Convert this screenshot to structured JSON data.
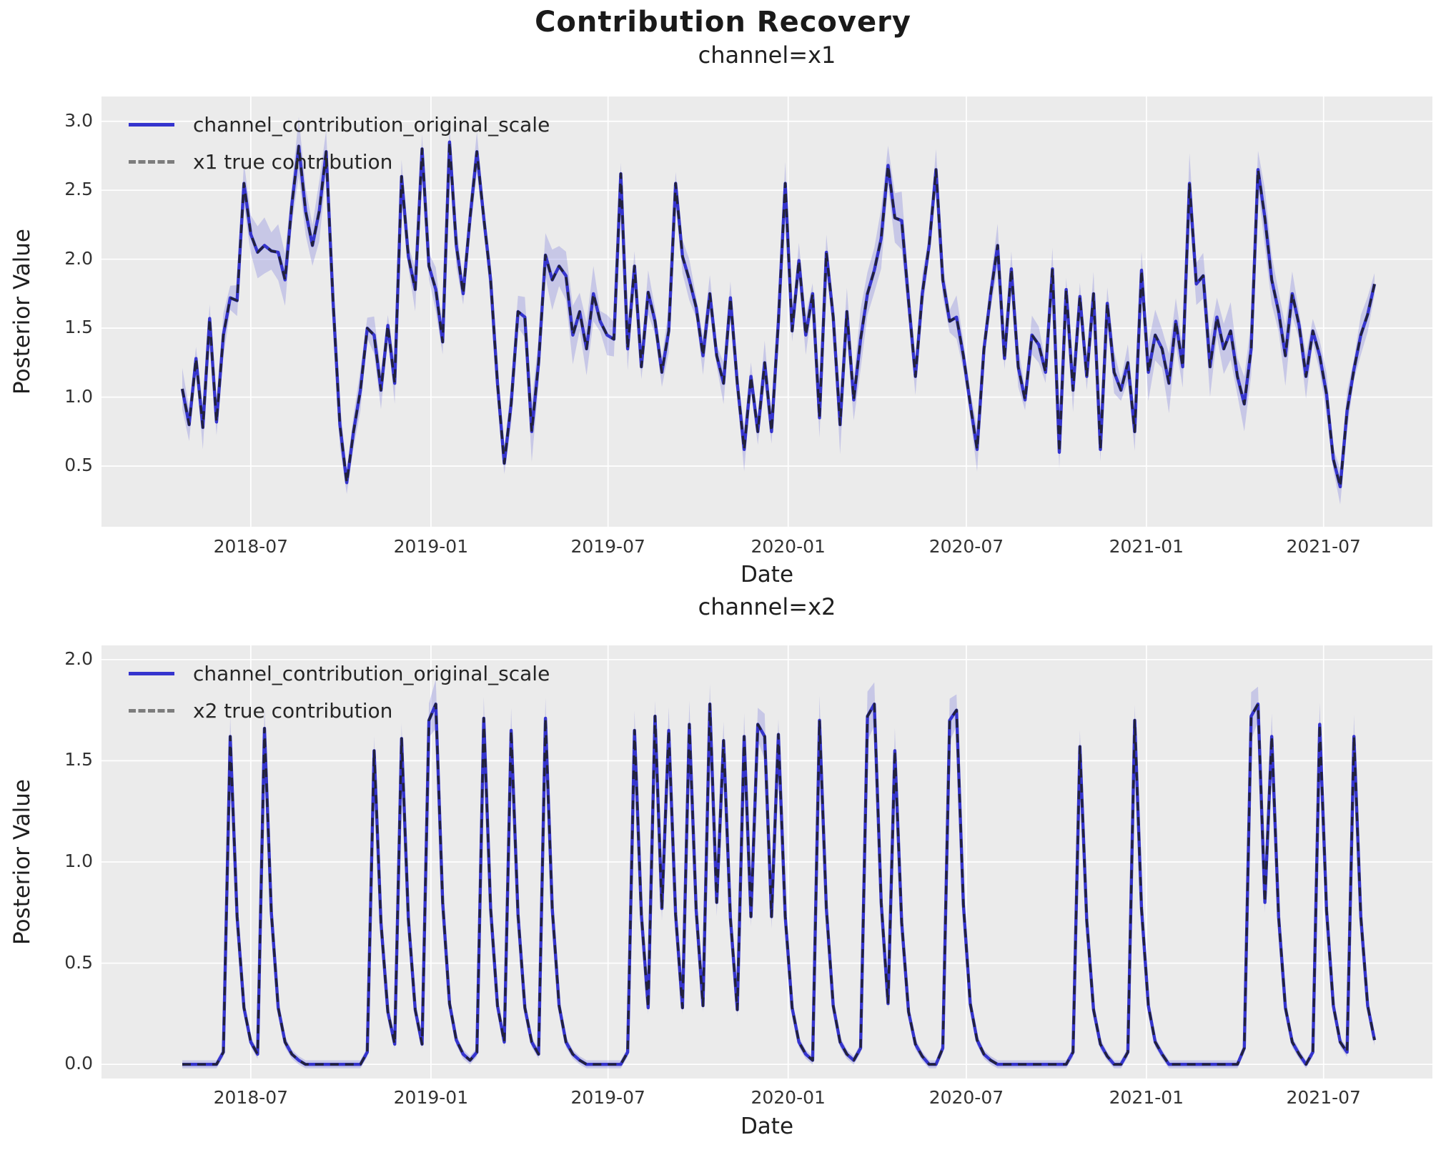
{
  "figure": {
    "title": "Contribution Recovery",
    "background": "#ffffff",
    "panel_background": "#ebebeb",
    "grid_color": "#ffffff",
    "posterior_line_color": "#3534ce",
    "true_line_color": "#7d7d7d",
    "band_color": "rgba(85,85,214,0.24)",
    "xlabel": "Date",
    "ylabel": "Posterior Value",
    "subplot1": {
      "title": "channel=x1",
      "legend": [
        "channel_contribution_original_scale",
        "x1 true contribution"
      ],
      "xlabel": "Date",
      "ylabel": "Posterior Value"
    },
    "subplot2": {
      "title": "channel=x2",
      "legend": [
        "channel_contribution_original_scale",
        "x2 true contribution"
      ],
      "xlabel": "Date",
      "ylabel": "Posterior Value"
    }
  },
  "chart_data": [
    {
      "type": "line",
      "title": "channel=x1",
      "xlabel": "Date",
      "ylabel": "Posterior Value",
      "x_start": "2018-04-22",
      "x_freq_days": 7,
      "n_points": 175,
      "ylim": [
        0.06,
        3.18
      ],
      "yticks": [
        3.0,
        2.5,
        2.0,
        1.5,
        1.0,
        0.5
      ],
      "ytick_labels": [
        "3.0",
        "2.5",
        "2.0",
        "1.5",
        "1.0",
        "0.5"
      ],
      "xticks": [
        {
          "label": "2018-07",
          "week": 10.0
        },
        {
          "label": "2019-01",
          "week": 36.29
        },
        {
          "label": "2019-07",
          "week": 62.14
        },
        {
          "label": "2020-01",
          "week": 88.43
        },
        {
          "label": "2020-07",
          "week": 114.43
        },
        {
          "label": "2021-01",
          "week": 140.71
        },
        {
          "label": "2021-07",
          "week": 166.57
        }
      ],
      "grid": true,
      "legend_position": "upper left",
      "band_halfwidth_typical": 0.13,
      "series": [
        {
          "name": "channel_contribution_original_scale",
          "style": "solid",
          "color": "#3534ce",
          "values": [
            1.06,
            0.8,
            1.28,
            0.78,
            1.57,
            0.82,
            1.45,
            1.72,
            1.7,
            2.55,
            2.18,
            2.05,
            2.1,
            2.06,
            2.05,
            1.85,
            2.4,
            2.82,
            2.35,
            2.1,
            2.35,
            2.78,
            1.7,
            0.8,
            0.38,
            0.75,
            1.05,
            1.5,
            1.45,
            1.05,
            1.52,
            1.1,
            2.6,
            2.02,
            1.78,
            2.8,
            1.95,
            1.78,
            1.4,
            2.85,
            2.1,
            1.75,
            2.3,
            2.78,
            2.3,
            1.85,
            1.1,
            0.52,
            0.95,
            1.62,
            1.58,
            0.75,
            1.25,
            2.03,
            1.85,
            1.95,
            1.88,
            1.45,
            1.62,
            1.35,
            1.75,
            1.55,
            1.45,
            1.42,
            2.62,
            1.35,
            1.95,
            1.22,
            1.76,
            1.55,
            1.18,
            1.48,
            2.55,
            2.02,
            1.85,
            1.65,
            1.3,
            1.75,
            1.3,
            1.1,
            1.72,
            1.1,
            0.62,
            1.15,
            0.75,
            1.25,
            0.75,
            1.55,
            2.55,
            1.48,
            1.99,
            1.45,
            1.75,
            0.85,
            2.05,
            1.58,
            0.8,
            1.62,
            0.98,
            1.42,
            1.75,
            1.92,
            2.15,
            2.68,
            2.3,
            2.28,
            1.7,
            1.15,
            1.75,
            2.1,
            2.65,
            1.85,
            1.55,
            1.58,
            1.3,
            0.95,
            0.62,
            1.35,
            1.75,
            2.1,
            1.28,
            1.93,
            1.22,
            0.98,
            1.45,
            1.38,
            1.18,
            1.93,
            0.6,
            1.78,
            1.05,
            1.73,
            1.15,
            1.75,
            0.62,
            1.68,
            1.18,
            1.05,
            1.25,
            0.75,
            1.92,
            1.18,
            1.45,
            1.35,
            1.1,
            1.55,
            1.22,
            2.55,
            1.82,
            1.88,
            1.22,
            1.58,
            1.35,
            1.48,
            1.15,
            0.95,
            1.35,
            2.65,
            2.3,
            1.85,
            1.62,
            1.3,
            1.75,
            1.52,
            1.15,
            1.48,
            1.3,
            1.02,
            0.55,
            0.35,
            0.9,
            1.2,
            1.45,
            1.6,
            1.82
          ]
        },
        {
          "name": "x1 true contribution",
          "style": "dashed",
          "color": "#7d7d7d",
          "note": "overlaps posterior line (values identical to series 0 at this resolution)"
        }
      ]
    },
    {
      "type": "line",
      "title": "channel=x2",
      "xlabel": "Date",
      "ylabel": "Posterior Value",
      "x_start": "2018-04-22",
      "x_freq_days": 7,
      "n_points": 175,
      "ylim": [
        -0.07,
        2.07
      ],
      "yticks": [
        2.0,
        1.5,
        1.0,
        0.5,
        0.0
      ],
      "ytick_labels": [
        "2.0",
        "1.5",
        "1.0",
        "0.5",
        "0.0"
      ],
      "xticks": [
        {
          "label": "2018-07",
          "week": 10.0
        },
        {
          "label": "2019-01",
          "week": 36.29
        },
        {
          "label": "2019-07",
          "week": 62.14
        },
        {
          "label": "2020-01",
          "week": 88.43
        },
        {
          "label": "2020-07",
          "week": 114.43
        },
        {
          "label": "2021-01",
          "week": 140.71
        },
        {
          "label": "2021-07",
          "week": 166.57
        }
      ],
      "grid": true,
      "legend_position": "upper left",
      "band_halfwidth_typical": 0.05,
      "series": [
        {
          "name": "channel_contribution_original_scale",
          "style": "solid",
          "color": "#3534ce",
          "values": [
            0,
            0,
            0,
            0,
            0,
            0,
            0.06,
            1.62,
            0.73,
            0.28,
            0.11,
            0.05,
            1.66,
            0.75,
            0.28,
            0.11,
            0.05,
            0.02,
            0,
            0,
            0,
            0,
            0,
            0,
            0,
            0,
            0,
            0.06,
            1.55,
            0.7,
            0.26,
            0.1,
            1.61,
            0.72,
            0.27,
            0.1,
            1.7,
            1.78,
            0.8,
            0.3,
            0.12,
            0.05,
            0.02,
            0.06,
            1.71,
            0.77,
            0.29,
            0.11,
            1.65,
            0.74,
            0.28,
            0.11,
            0.05,
            1.71,
            0.77,
            0.29,
            0.11,
            0.05,
            0.02,
            0,
            0,
            0,
            0,
            0,
            0,
            0.06,
            1.65,
            0.74,
            0.28,
            1.72,
            0.77,
            1.65,
            0.74,
            0.28,
            1.68,
            0.76,
            0.29,
            1.78,
            0.8,
            1.6,
            0.72,
            0.27,
            1.62,
            0.73,
            1.68,
            1.62,
            0.73,
            1.63,
            0.73,
            0.28,
            0.11,
            0.05,
            0.02,
            1.7,
            0.77,
            0.29,
            0.11,
            0.05,
            0.02,
            0.08,
            1.72,
            1.78,
            0.8,
            0.3,
            1.55,
            0.7,
            0.26,
            0.1,
            0.04,
            0,
            0,
            0.08,
            1.7,
            1.75,
            0.79,
            0.3,
            0.12,
            0.05,
            0.02,
            0,
            0,
            0,
            0,
            0,
            0,
            0,
            0,
            0,
            0,
            0,
            0.06,
            1.57,
            0.71,
            0.27,
            0.1,
            0.04,
            0,
            0,
            0.06,
            1.7,
            0.77,
            0.29,
            0.11,
            0.05,
            0,
            0,
            0,
            0,
            0,
            0,
            0,
            0,
            0,
            0,
            0,
            0.08,
            1.72,
            1.78,
            0.8,
            1.62,
            0.73,
            0.28,
            0.11,
            0.05,
            0,
            0.06,
            1.68,
            0.76,
            0.29,
            0.11,
            0.06,
            1.62,
            0.73,
            0.29,
            0.12
          ]
        },
        {
          "name": "x2 true contribution",
          "style": "dashed",
          "color": "#7d7d7d",
          "note": "overlaps posterior line (values identical to series 0 at this resolution)"
        }
      ]
    }
  ]
}
